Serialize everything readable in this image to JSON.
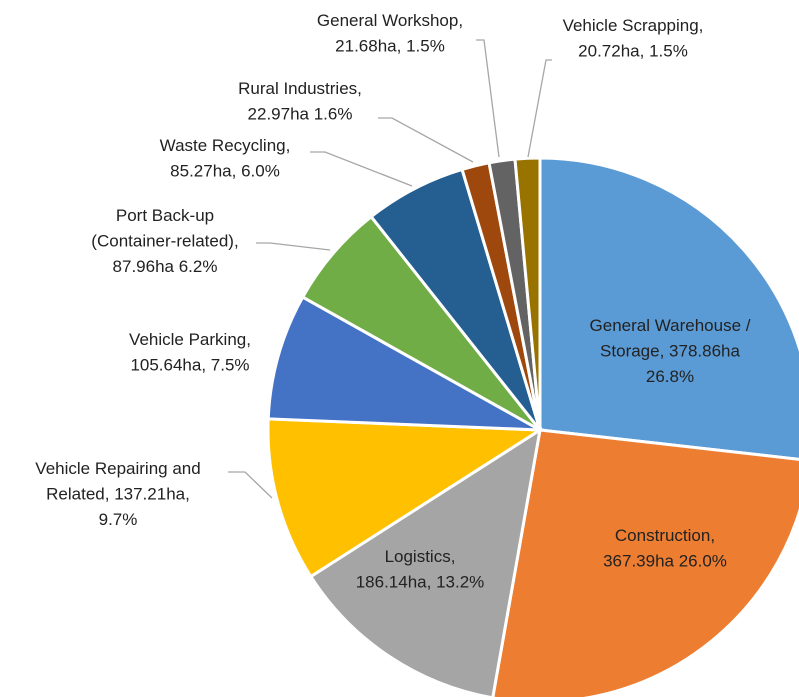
{
  "chart_data": {
    "type": "pie",
    "values": [
      378.86,
      367.39,
      186.14,
      137.21,
      105.64,
      87.96,
      85.27,
      22.97,
      21.68,
      20.72
    ],
    "value_labels": [
      "General Warehouse /\nStorage, 378.86ha\n26.8%",
      "Construction,\n367.39ha 26.0%",
      "Logistics,\n186.14ha, 13.2%",
      "Vehicle Repairing and\nRelated, 137.21ha,\n9.7%",
      "Vehicle Parking,\n105.64ha, 7.5%",
      "Port Back-up\n(Container-related),\n87.96ha 6.2%",
      "Waste Recycling,\n85.27ha, 6.0%",
      "Rural Industries,\n22.97ha 1.6%",
      "General Workshop,\n21.68ha, 1.5%",
      "Vehicle Scrapping,\n20.72ha, 1.5%"
    ],
    "colors": [
      "#5b9bd5",
      "#ed7d31",
      "#a5a5a5",
      "#ffc000",
      "#4472c4",
      "#70ad47",
      "#255e91",
      "#9e480e",
      "#636363",
      "#997300"
    ]
  }
}
